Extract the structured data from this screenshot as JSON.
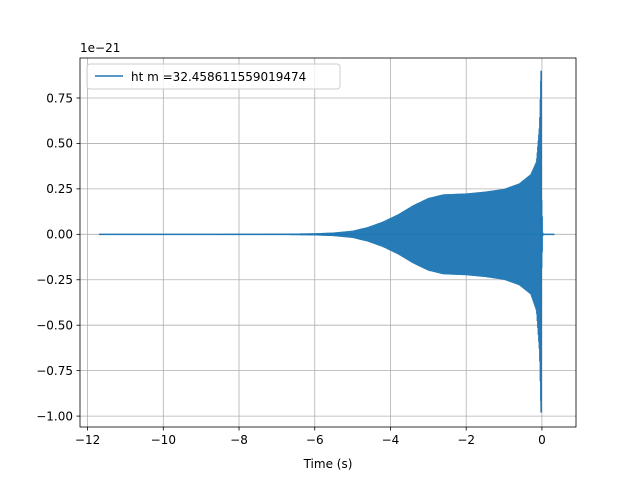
{
  "chart_data": {
    "type": "line",
    "title": "",
    "xlabel": "Time (s)",
    "ylabel": "",
    "y_offset_label": "1e−21",
    "xlim": [
      -12.2,
      0.9
    ],
    "ylim": [
      -1.06,
      0.97
    ],
    "x_ticks": [
      -12,
      -10,
      -8,
      -6,
      -4,
      -2,
      0
    ],
    "x_tick_labels": [
      "−12",
      "−10",
      "−8",
      "−6",
      "−4",
      "−2",
      "0"
    ],
    "y_ticks": [
      -1.0,
      -0.75,
      -0.5,
      -0.25,
      0.0,
      0.25,
      0.5,
      0.75
    ],
    "y_tick_labels": [
      "−1.00",
      "−0.75",
      "−0.50",
      "−0.25",
      "0.00",
      "0.25",
      "0.50",
      "0.75"
    ],
    "grid": true,
    "legend_position": "upper-left",
    "series": [
      {
        "name": "ht m =32.458611559019474",
        "color": "#1f77b4",
        "x_start": -11.7,
        "x_end": 0.33,
        "envelope": [
          {
            "x": -11.7,
            "upper": 0.0,
            "lower": 0.0
          },
          {
            "x": -7.0,
            "upper": 0.003,
            "lower": -0.003
          },
          {
            "x": -6.0,
            "upper": 0.006,
            "lower": -0.006
          },
          {
            "x": -5.5,
            "upper": 0.01,
            "lower": -0.01
          },
          {
            "x": -5.0,
            "upper": 0.02,
            "lower": -0.02
          },
          {
            "x": -4.6,
            "upper": 0.04,
            "lower": -0.04
          },
          {
            "x": -4.2,
            "upper": 0.07,
            "lower": -0.07
          },
          {
            "x": -3.8,
            "upper": 0.11,
            "lower": -0.11
          },
          {
            "x": -3.4,
            "upper": 0.16,
            "lower": -0.16
          },
          {
            "x": -3.0,
            "upper": 0.2,
            "lower": -0.2
          },
          {
            "x": -2.6,
            "upper": 0.22,
            "lower": -0.22
          },
          {
            "x": -2.0,
            "upper": 0.225,
            "lower": -0.225
          },
          {
            "x": -1.5,
            "upper": 0.235,
            "lower": -0.235
          },
          {
            "x": -1.0,
            "upper": 0.25,
            "lower": -0.25
          },
          {
            "x": -0.6,
            "upper": 0.28,
            "lower": -0.28
          },
          {
            "x": -0.3,
            "upper": 0.33,
            "lower": -0.33
          },
          {
            "x": -0.15,
            "upper": 0.4,
            "lower": -0.42
          },
          {
            "x": -0.07,
            "upper": 0.6,
            "lower": -0.65
          },
          {
            "x": -0.03,
            "upper": 0.9,
            "lower": -0.98
          },
          {
            "x": 0.0,
            "upper": 0.2,
            "lower": -0.2
          },
          {
            "x": 0.03,
            "upper": 0.0,
            "lower": 0.0
          },
          {
            "x": 0.33,
            "upper": 0.0,
            "lower": 0.0
          }
        ]
      }
    ]
  }
}
